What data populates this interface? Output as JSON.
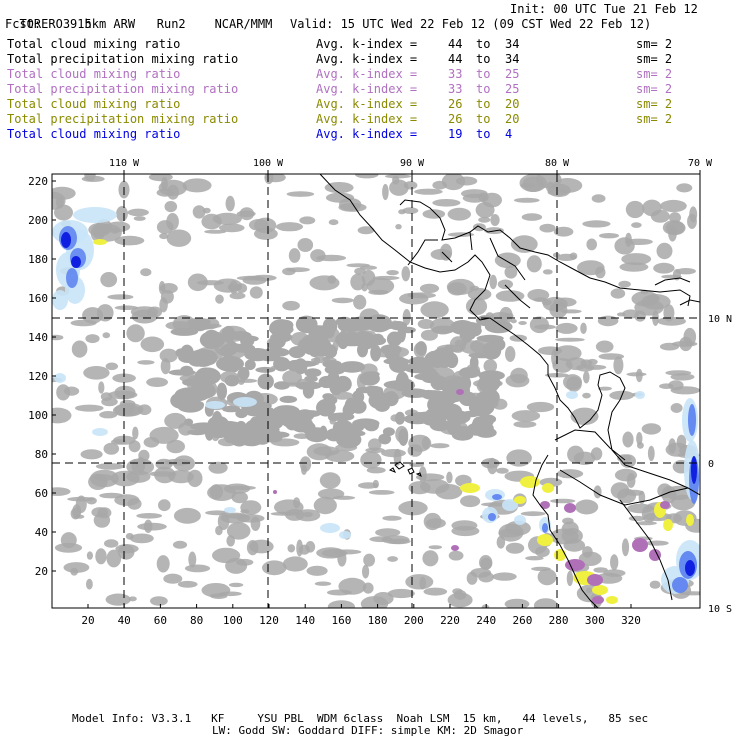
{
  "header": {
    "model": "TORERO",
    "resolution": "15km ARW",
    "run": "Run2",
    "org": "NCAR/MMM",
    "init": "Init: 00 UTC Tue 21 Feb 12",
    "fcst_label": "Fcst:",
    "fcst_value": "39 h",
    "valid": "Valid: 15 UTC Wed 22 Feb 12 (09 CST Wed 22 Feb 12)"
  },
  "legend": [
    {
      "field": "Total cloud mixing ratio",
      "kindex": "Avg. k-index =",
      "from": "44",
      "to_word": "to",
      "to": "34",
      "sm": "sm= 2",
      "color": "#000000"
    },
    {
      "field": "Total precipitation mixing ratio",
      "kindex": "Avg. k-index =",
      "from": "44",
      "to_word": "to",
      "to": "34",
      "sm": "sm= 2",
      "color": "#000000"
    },
    {
      "field": "Total cloud mixing ratio",
      "kindex": "Avg. k-index =",
      "from": "33",
      "to_word": "to",
      "to": "25",
      "sm": "sm= 2",
      "color": "#b070c0"
    },
    {
      "field": "Total precipitation mixing ratio",
      "kindex": "Avg. k-index =",
      "from": "33",
      "to_word": "to",
      "to": "25",
      "sm": "sm= 2",
      "color": "#b070c0"
    },
    {
      "field": "Total cloud mixing ratio",
      "kindex": "Avg. k-index =",
      "from": "26",
      "to_word": "to",
      "to": "20",
      "sm": "sm= 2",
      "color": "#8a8a00"
    },
    {
      "field": "Total precipitation mixing ratio",
      "kindex": "Avg. k-index =",
      "from": "26",
      "to_word": "to",
      "to": "20",
      "sm": "sm= 2",
      "color": "#8a8a00"
    },
    {
      "field": "Total cloud mixing ratio",
      "kindex": "Avg. k-index =",
      "from": "19",
      "to_word": "to",
      "to": "4",
      "sm": "",
      "color": "#0000e0"
    }
  ],
  "map": {
    "top_lon_labels": [
      "110 W",
      "100 W",
      "90 W",
      "80 W",
      "70 W"
    ],
    "right_lat_labels": [
      "10 N",
      "0",
      "10 S"
    ],
    "left_ticks": [
      "220",
      "200",
      "180",
      "160",
      "140",
      "120",
      "100",
      "80",
      "60",
      "40",
      "20"
    ],
    "bottom_ticks": [
      "20",
      "40",
      "60",
      "80",
      "100",
      "120",
      "140",
      "160",
      "180",
      "200",
      "220",
      "240",
      "260",
      "280",
      "300",
      "320"
    ],
    "colors": {
      "cloud_gray": "#a8a8a8",
      "light_blue": "#c8e4f8",
      "mid_blue": "#5a80f0",
      "deep_blue": "#1020e0",
      "yellow": "#f0f040",
      "purple": "#b070b8"
    }
  },
  "footer": {
    "line1": "Model Info: V3.3.1   KF     YSU PBL  WDM 6class  Noah LSM  15 km,   44 levels,   85 sec",
    "line2": "LW: Godd SW: Goddard DIFF: simple KM: 2D Smagor"
  }
}
